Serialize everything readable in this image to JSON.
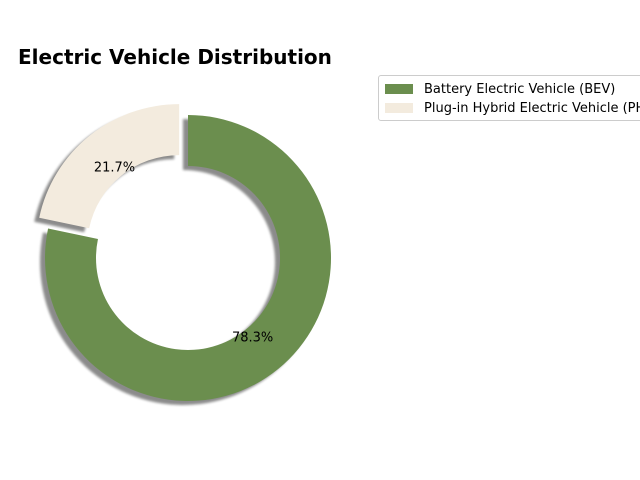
{
  "chart_data": {
    "type": "pie",
    "variant": "donut",
    "title": "Electric Vehicle Distribution",
    "categories": [
      "Battery Electric Vehicle (BEV)",
      "Plug-in Hybrid Electric Vehicle (PHEV)"
    ],
    "values": [
      78.3,
      21.7
    ],
    "value_labels": [
      "78.3%",
      "21.7%"
    ],
    "colors": [
      "#6b8e4e",
      "#f3ebde"
    ],
    "exploded": [
      false,
      true
    ],
    "shadow": true,
    "start_angle": 90,
    "legend_position": "upper-right"
  }
}
